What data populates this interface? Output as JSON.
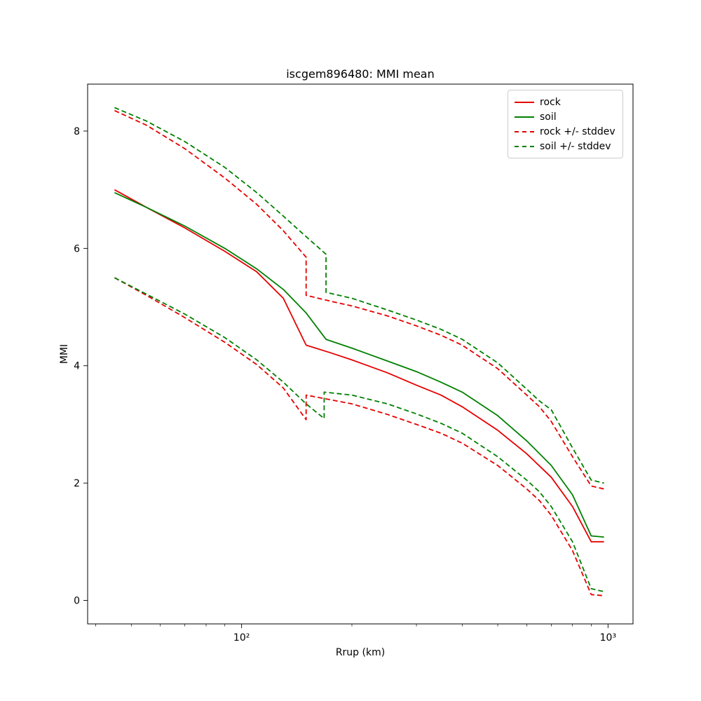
{
  "figure": {
    "title": "iscgem896480: MMI mean",
    "xlabel": "Rrup (km)",
    "ylabel": "MMI",
    "background": "#ffffff"
  },
  "colors": {
    "rock": "#e60000",
    "soil": "#008000",
    "spine": "#000000"
  },
  "legend": {
    "items": [
      {
        "label": "rock",
        "color": "#e60000",
        "dash": "solid"
      },
      {
        "label": "soil",
        "color": "#008000",
        "dash": "solid"
      },
      {
        "label": "rock +/- stddev",
        "color": "#e60000",
        "dash": "dashed"
      },
      {
        "label": "soil +/- stddev",
        "color": "#008000",
        "dash": "dashed"
      }
    ]
  },
  "chart_data": {
    "type": "line",
    "title": "iscgem896480: MMI mean",
    "xlabel": "Rrup (km)",
    "ylabel": "MMI",
    "x_scale": "log",
    "xlim": [
      38,
      1170
    ],
    "ylim": [
      -0.4,
      8.8
    ],
    "x_ticks": [
      {
        "value": 100,
        "label": "10²"
      },
      {
        "value": 1000,
        "label": "10³"
      }
    ],
    "x_minor_ticks": [
      40,
      50,
      60,
      70,
      80,
      90,
      200,
      300,
      400,
      500,
      600,
      700,
      800,
      900
    ],
    "y_ticks": [
      {
        "value": 0,
        "label": "0"
      },
      {
        "value": 2,
        "label": "2"
      },
      {
        "value": 4,
        "label": "4"
      },
      {
        "value": 6,
        "label": "6"
      },
      {
        "value": 8,
        "label": "8"
      }
    ],
    "legend_position": "upper right",
    "grid": false,
    "series": [
      {
        "name": "rock",
        "color": "#e60000",
        "style": "solid",
        "x": [
          45,
          55,
          70,
          90,
          110,
          130,
          150,
          175,
          200,
          250,
          300,
          350,
          400,
          500,
          600,
          700,
          800,
          900,
          975
        ],
        "y": [
          7.0,
          6.7,
          6.35,
          5.95,
          5.6,
          5.15,
          4.35,
          4.22,
          4.1,
          3.88,
          3.67,
          3.5,
          3.3,
          2.9,
          2.5,
          2.1,
          1.6,
          1.0,
          1.0
        ]
      },
      {
        "name": "soil",
        "color": "#008000",
        "style": "solid",
        "x": [
          45,
          55,
          70,
          90,
          110,
          130,
          150,
          170,
          200,
          250,
          300,
          350,
          400,
          500,
          600,
          700,
          800,
          900,
          975
        ],
        "y": [
          6.95,
          6.7,
          6.38,
          6.0,
          5.65,
          5.3,
          4.9,
          4.45,
          4.3,
          4.08,
          3.9,
          3.72,
          3.55,
          3.15,
          2.72,
          2.3,
          1.8,
          1.1,
          1.08
        ]
      },
      {
        "name": "rock plus stddev",
        "color": "#e60000",
        "style": "dashed",
        "x": [
          45,
          55,
          70,
          90,
          110,
          130,
          150,
          150,
          175,
          200,
          250,
          300,
          350,
          400,
          500,
          600,
          650,
          700,
          800,
          900,
          975
        ],
        "y": [
          8.35,
          8.1,
          7.7,
          7.2,
          6.75,
          6.3,
          5.85,
          5.2,
          5.1,
          5.02,
          4.85,
          4.68,
          4.52,
          4.35,
          3.95,
          3.5,
          3.3,
          3.05,
          2.45,
          1.95,
          1.9
        ]
      },
      {
        "name": "rock minus stddev",
        "color": "#e60000",
        "style": "dashed",
        "x": [
          45,
          55,
          70,
          90,
          110,
          130,
          150,
          150,
          175,
          200,
          250,
          300,
          350,
          400,
          500,
          600,
          650,
          700,
          800,
          900,
          975
        ],
        "y": [
          5.5,
          5.2,
          4.82,
          4.4,
          4.02,
          3.62,
          3.08,
          3.5,
          3.42,
          3.35,
          3.17,
          3.0,
          2.85,
          2.68,
          2.3,
          1.9,
          1.7,
          1.45,
          0.85,
          0.1,
          0.08
        ]
      },
      {
        "name": "soil plus stddev",
        "color": "#008000",
        "style": "dashed",
        "x": [
          45,
          55,
          70,
          90,
          110,
          130,
          150,
          170,
          170,
          200,
          250,
          300,
          350,
          400,
          500,
          600,
          650,
          700,
          800,
          900,
          975
        ],
        "y": [
          8.4,
          8.17,
          7.82,
          7.38,
          6.95,
          6.55,
          6.2,
          5.9,
          5.25,
          5.15,
          4.95,
          4.78,
          4.62,
          4.45,
          4.05,
          3.6,
          3.4,
          3.25,
          2.6,
          2.05,
          2.0
        ]
      },
      {
        "name": "soil minus stddev",
        "color": "#008000",
        "style": "dashed",
        "x": [
          45,
          55,
          70,
          90,
          110,
          130,
          150,
          168,
          168,
          200,
          250,
          300,
          350,
          400,
          500,
          600,
          650,
          700,
          800,
          900,
          975
        ],
        "y": [
          5.5,
          5.22,
          4.88,
          4.48,
          4.1,
          3.72,
          3.35,
          3.1,
          3.55,
          3.5,
          3.35,
          3.18,
          3.02,
          2.85,
          2.45,
          2.05,
          1.85,
          1.6,
          1.0,
          0.2,
          0.15
        ]
      }
    ]
  }
}
